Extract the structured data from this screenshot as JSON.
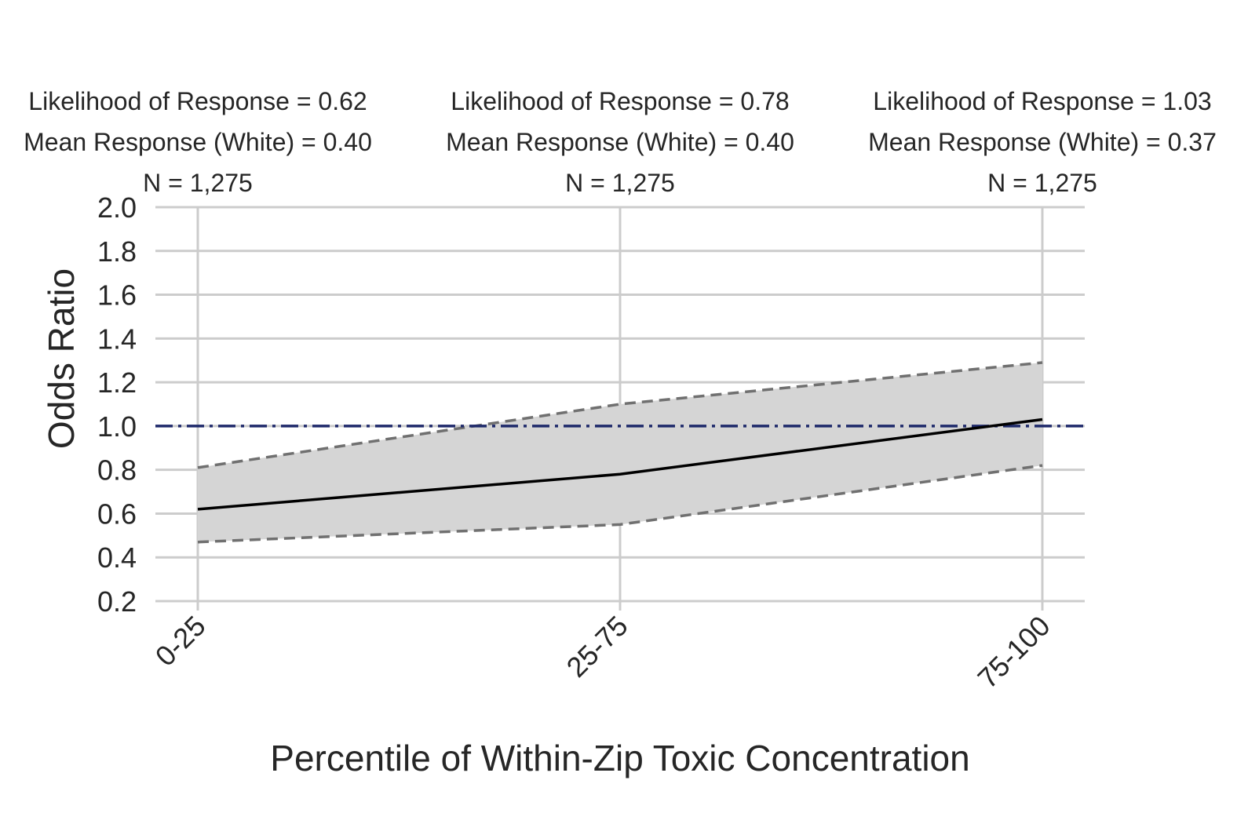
{
  "chart_data": {
    "type": "line",
    "xlabel": "Percentile of Within-Zip Toxic Concentration",
    "ylabel": "Odds Ratio",
    "categories": [
      "0-25",
      "25-75",
      "75-100"
    ],
    "ylim": [
      0.2,
      2.0
    ],
    "yticks": [
      "0.2",
      "0.4",
      "0.6",
      "0.8",
      "1.0",
      "1.2",
      "1.4",
      "1.6",
      "1.8",
      "2.0"
    ],
    "ytick_values": [
      0.2,
      0.4,
      0.6,
      0.8,
      1.0,
      1.2,
      1.4,
      1.6,
      1.8,
      2.0
    ],
    "series": [
      {
        "values": [
          0.62,
          0.78,
          1.03
        ],
        "style": "solid",
        "color": "#000000"
      }
    ],
    "ci_upper": [
      0.81,
      1.1,
      1.29
    ],
    "ci_lower": [
      0.47,
      0.55,
      0.82
    ],
    "reference_line": {
      "y": 1.0,
      "style": "dash-dot",
      "color": "#1f2a6b"
    },
    "band_color": "#d5d5d5",
    "ci_line_color": "#707070",
    "grid": true,
    "grid_color": "#cccccc",
    "annotations": [
      {
        "likelihood": "Likelihood of Response = 0.62",
        "mean_response": "Mean Response (White) = 0.40",
        "n": "N = 1,275"
      },
      {
        "likelihood": "Likelihood of Response = 0.78",
        "mean_response": "Mean Response (White) = 0.40",
        "n": "N = 1,275"
      },
      {
        "likelihood": "Likelihood of Response = 1.03",
        "mean_response": "Mean Response (White) = 0.37",
        "n": "N = 1,275"
      }
    ]
  }
}
